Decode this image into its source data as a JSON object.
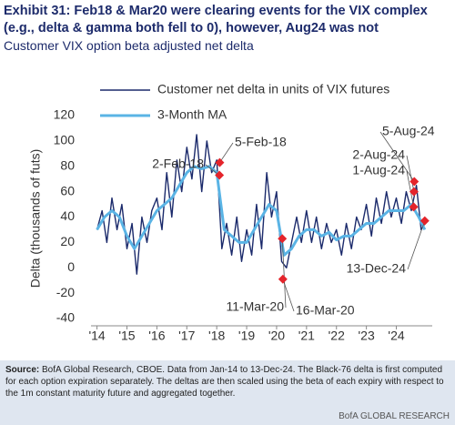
{
  "chart_data": {
    "type": "line",
    "title": "Exhibit 31: Feb18 & Mar20 were clearing events for the VIX complex (e.g., delta & gamma both fell to 0), however, Aug24 was not",
    "subtitle": "Customer VIX option beta adjusted net delta",
    "y_label": "Delta (thousands of futs)",
    "xlim": [
      2013.8,
      2025.2
    ],
    "xticks": [
      {
        "value": 2014,
        "label": "'14"
      },
      {
        "value": 2015,
        "label": "'15"
      },
      {
        "value": 2016,
        "label": "'16"
      },
      {
        "value": 2017,
        "label": "'17"
      },
      {
        "value": 2018,
        "label": "'18"
      },
      {
        "value": 2019,
        "label": "'19"
      },
      {
        "value": 2020,
        "label": "'20"
      },
      {
        "value": 2021,
        "label": "'21"
      },
      {
        "value": 2022,
        "label": "'22"
      },
      {
        "value": 2023,
        "label": "'23"
      },
      {
        "value": 2024,
        "label": "'24"
      }
    ],
    "ylim": [
      -40,
      120
    ],
    "yticks": [
      -40,
      -20,
      0,
      20,
      40,
      60,
      80,
      100,
      120
    ],
    "grid": false,
    "legend": "top-left",
    "series": [
      {
        "name": "Customer net delta in units of VIX futures",
        "color": "#1b2a6b",
        "x": [
          2014.0,
          2014.17,
          2014.33,
          2014.5,
          2014.67,
          2014.83,
          2015.0,
          2015.17,
          2015.33,
          2015.5,
          2015.67,
          2015.83,
          2016.0,
          2016.17,
          2016.33,
          2016.5,
          2016.67,
          2016.83,
          2017.0,
          2017.17,
          2017.33,
          2017.5,
          2017.67,
          2017.83,
          2018.0,
          2018.17,
          2018.33,
          2018.5,
          2018.67,
          2018.83,
          2019.0,
          2019.17,
          2019.33,
          2019.5,
          2019.67,
          2019.83,
          2020.0,
          2020.17,
          2020.33,
          2020.5,
          2020.67,
          2020.83,
          2021.0,
          2021.17,
          2021.33,
          2021.5,
          2021.67,
          2021.83,
          2022.0,
          2022.17,
          2022.33,
          2022.5,
          2022.67,
          2022.83,
          2023.0,
          2023.17,
          2023.33,
          2023.5,
          2023.67,
          2023.83,
          2024.0,
          2024.17,
          2024.33,
          2024.5,
          2024.67,
          2024.83,
          2024.95
        ],
        "values": [
          30,
          45,
          20,
          55,
          30,
          50,
          15,
          35,
          -5,
          40,
          20,
          45,
          55,
          30,
          75,
          40,
          85,
          60,
          95,
          70,
          105,
          60,
          100,
          75,
          85,
          15,
          35,
          10,
          40,
          5,
          30,
          10,
          50,
          15,
          75,
          40,
          60,
          5,
          0,
          20,
          40,
          20,
          45,
          20,
          40,
          15,
          35,
          20,
          30,
          10,
          35,
          15,
          40,
          30,
          50,
          25,
          55,
          35,
          60,
          40,
          55,
          35,
          60,
          45,
          65,
          30,
          35
        ]
      },
      {
        "name": "3-Month MA",
        "color": "#5ab4e5",
        "x": [
          2014.0,
          2014.25,
          2014.5,
          2014.75,
          2015.0,
          2015.25,
          2015.5,
          2015.75,
          2016.0,
          2016.25,
          2016.5,
          2016.75,
          2017.0,
          2017.25,
          2017.5,
          2017.75,
          2018.0,
          2018.25,
          2018.5,
          2018.75,
          2019.0,
          2019.25,
          2019.5,
          2019.75,
          2020.0,
          2020.25,
          2020.5,
          2020.75,
          2021.0,
          2021.25,
          2021.5,
          2021.75,
          2022.0,
          2022.25,
          2022.5,
          2022.75,
          2023.0,
          2023.25,
          2023.5,
          2023.75,
          2024.0,
          2024.25,
          2024.5,
          2024.75,
          2024.95
        ],
        "values": [
          30,
          40,
          45,
          40,
          25,
          15,
          25,
          35,
          45,
          50,
          55,
          65,
          75,
          80,
          78,
          80,
          75,
          30,
          25,
          20,
          20,
          30,
          40,
          50,
          45,
          10,
          15,
          25,
          30,
          30,
          25,
          28,
          22,
          25,
          25,
          30,
          35,
          35,
          40,
          45,
          45,
          45,
          50,
          40,
          30
        ]
      }
    ],
    "annotations": [
      {
        "label": "2-Feb-18",
        "x": 2018.09,
        "y": 73
      },
      {
        "label": "5-Feb-18",
        "x": 2018.1,
        "y": 83
      },
      {
        "label": "11-Mar-20",
        "x": 2020.19,
        "y": 23
      },
      {
        "label": "16-Mar-20",
        "x": 2020.21,
        "y": -9
      },
      {
        "label": "1-Aug-24",
        "x": 2024.58,
        "y": 48
      },
      {
        "label": "2-Aug-24",
        "x": 2024.59,
        "y": 60
      },
      {
        "label": "5-Aug-24",
        "x": 2024.6,
        "y": 68
      },
      {
        "label": "13-Dec-24",
        "x": 2024.95,
        "y": 37
      }
    ],
    "marker_color": "#e4242b",
    "source_label": "Source:",
    "source_text": "BofA Global Research, CBOE. Data from Jan-14 to 13-Dec-24. The Black-76 delta is first computed for each option expiration separately. The deltas are then scaled using the beta of each expiry with respect to the 1m constant maturity future and aggregated together.",
    "brand": "BofA GLOBAL RESEARCH"
  }
}
